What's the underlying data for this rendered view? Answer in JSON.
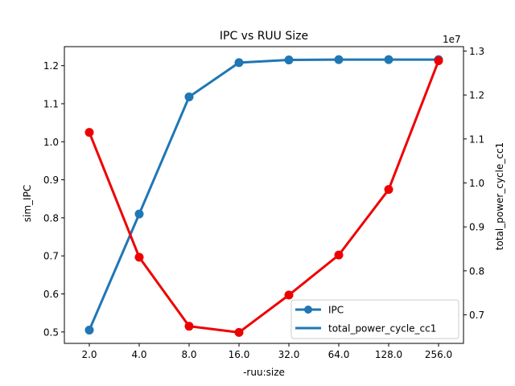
{
  "chart_data": {
    "type": "line",
    "title": "IPC vs RUU Size",
    "xlabel": "-ruu:size",
    "ylabel": "sim_IPC",
    "y2label": "total_power_cycle_cc1",
    "y2_offset_text": "1e7",
    "categories": [
      "2.0",
      "4.0",
      "8.0",
      "16.0",
      "32.0",
      "64.0",
      "128.0",
      "256.0"
    ],
    "ylim": [
      0.47,
      1.25
    ],
    "y2lim": [
      0.635,
      1.31
    ],
    "yticks": [
      "0.5",
      "0.6",
      "0.7",
      "0.8",
      "0.9",
      "1.0",
      "1.1",
      "1.2"
    ],
    "y2ticks": [
      "0.7",
      "0.8",
      "0.9",
      "1.0",
      "1.1",
      "1.2",
      "1.3"
    ],
    "legend_position": "lower-right",
    "series": [
      {
        "name": "IPC",
        "axis": "left",
        "color": "#1f77b4",
        "values": [
          0.505,
          0.81,
          1.118,
          1.208,
          1.215,
          1.216,
          1.216,
          1.216
        ]
      },
      {
        "name": "total_power_cycle_cc1",
        "axis": "right",
        "color": "#ee0000",
        "values": [
          1.115,
          0.831,
          0.674,
          0.66,
          0.745,
          0.836,
          0.985,
          1.278
        ]
      }
    ]
  }
}
